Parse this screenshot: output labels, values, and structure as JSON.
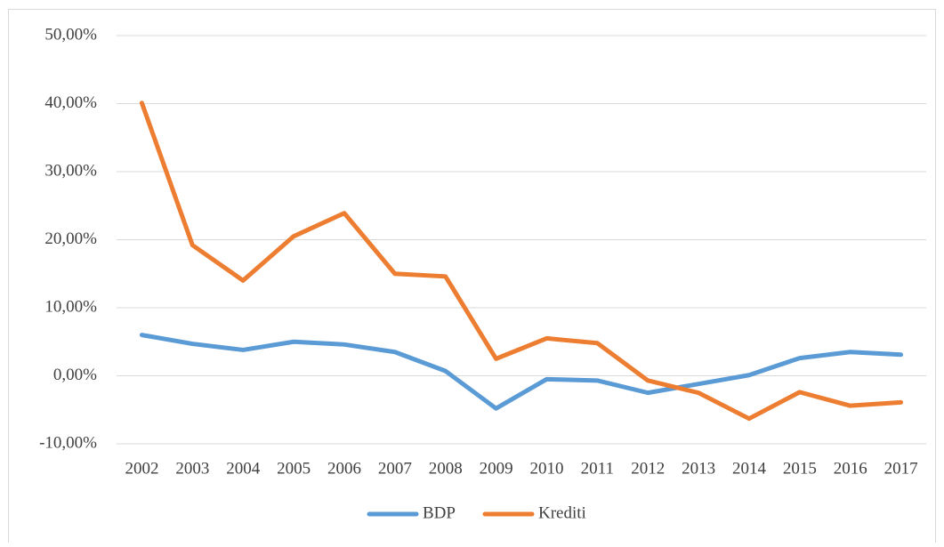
{
  "chart_data": {
    "type": "line",
    "categories": [
      "2002",
      "2003",
      "2004",
      "2005",
      "2006",
      "2007",
      "2008",
      "2009",
      "2010",
      "2011",
      "2012",
      "2013",
      "2014",
      "2015",
      "2016",
      "2017"
    ],
    "series": [
      {
        "name": "BDP",
        "color": "#5b9bd5",
        "values": [
          6.0,
          4.7,
          3.8,
          5.0,
          4.6,
          3.5,
          0.7,
          -4.8,
          -0.5,
          -0.7,
          -2.5,
          -1.2,
          0.1,
          2.6,
          3.5,
          3.1
        ]
      },
      {
        "name": "Krediti",
        "color": "#ed7d31",
        "values": [
          40.1,
          19.2,
          14.0,
          20.5,
          23.9,
          15.0,
          14.6,
          2.5,
          5.5,
          4.8,
          -0.7,
          -2.5,
          -6.3,
          -2.4,
          -4.4,
          -3.9
        ]
      }
    ],
    "ylim": [
      -10,
      50
    ],
    "yticks": [
      {
        "value": -10,
        "label": "-10,00%"
      },
      {
        "value": 0,
        "label": "0,00%"
      },
      {
        "value": 10,
        "label": "10,00%"
      },
      {
        "value": 20,
        "label": "20,00%"
      },
      {
        "value": 30,
        "label": "30,00%"
      },
      {
        "value": 40,
        "label": "40,00%"
      },
      {
        "value": 50,
        "label": "50,00%"
      }
    ],
    "grid": true,
    "legend": "bottom"
  }
}
